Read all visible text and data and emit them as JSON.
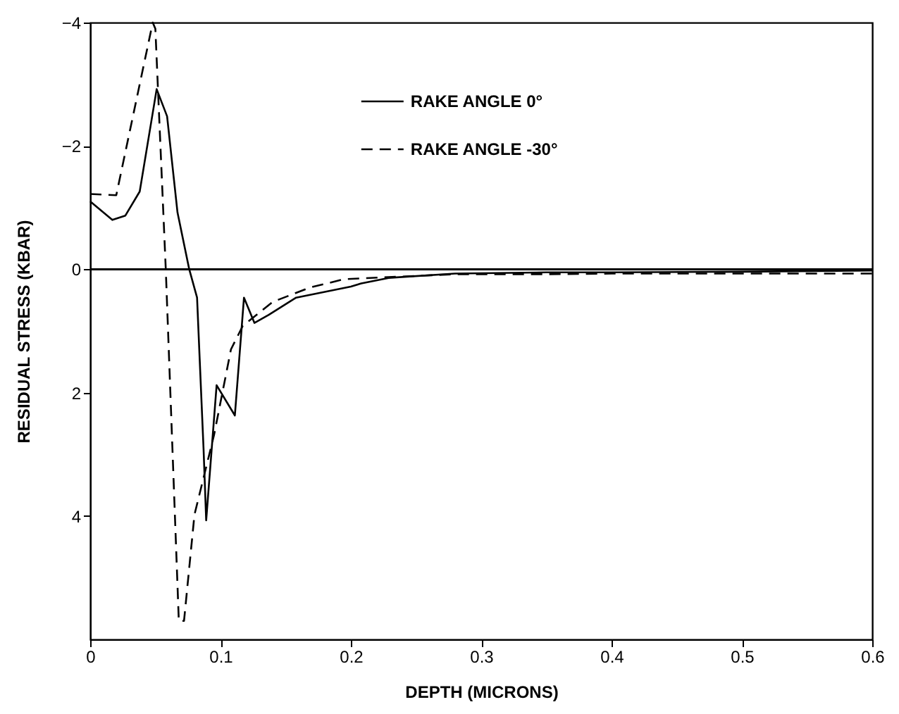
{
  "chart_data": {
    "type": "line",
    "xlabel": "DEPTH (MICRONS)",
    "ylabel": "RESIDUAL STRESS (KBAR)",
    "xlim": [
      0,
      0.6
    ],
    "ylim": [
      6,
      -4
    ],
    "xticks": [
      0,
      0.1,
      0.2,
      0.3,
      0.4,
      0.5,
      0.6
    ],
    "yticks": [
      -4,
      -2,
      0,
      2,
      4
    ],
    "grid": false,
    "legend": "top",
    "marker": "none",
    "ref_lines": [
      {
        "axis": "y",
        "value": 0,
        "color": "#000000",
        "line_style": "solid"
      }
    ],
    "series": [
      {
        "name": "RAKE ANGLE   0°",
        "color": "#000000",
        "line_style": "solid",
        "x": [
          0,
          0.017,
          0.027,
          0.038,
          0.051,
          0.059,
          0.067,
          0.076,
          0.082,
          0.084,
          0.087,
          0.089,
          0.097,
          0.111,
          0.118,
          0.126,
          0.137,
          0.158,
          0.2,
          0.208,
          0.229,
          0.28,
          0.35,
          0.4,
          0.5,
          0.6
        ],
        "values": [
          -1.1,
          -0.8,
          -0.87,
          -1.26,
          -2.92,
          -2.48,
          -0.92,
          0,
          0.46,
          1.45,
          2.92,
          4.07,
          1.88,
          2.37,
          0.46,
          0.87,
          0.74,
          0.46,
          0.28,
          0.23,
          0.14,
          0.07,
          0.05,
          0.05,
          0.04,
          0.02
        ]
      },
      {
        "name": "RAKE ANGLE -30°",
        "color": "#000000",
        "line_style": "dashed",
        "x": [
          0,
          0.02,
          0.048,
          0.05,
          0.058,
          0.068,
          0.072,
          0.08,
          0.095,
          0.108,
          0.117,
          0.14,
          0.168,
          0.195,
          0.28,
          0.35,
          0.4,
          0.5,
          0.6
        ],
        "values": [
          -1.22,
          -1.2,
          -4,
          -3.9,
          0,
          5.7,
          5.7,
          3.98,
          2.69,
          1.3,
          0.92,
          0.53,
          0.3,
          0.16,
          0.08,
          0.08,
          0.07,
          0.07,
          0.07
        ]
      }
    ]
  }
}
